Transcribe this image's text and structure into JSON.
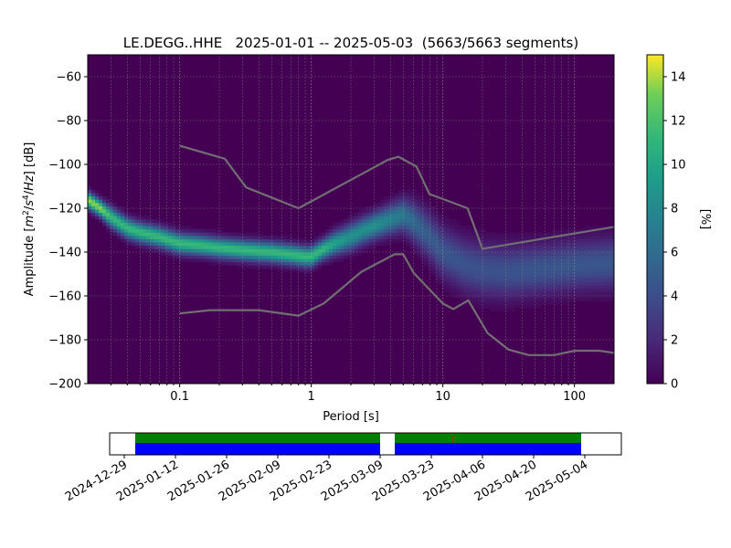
{
  "chart_data": [
    {
      "type": "heatmap",
      "title": "LE.DEGG..HHE   2025-01-01 -- 2025-05-03  (5663/5663 segments)",
      "xlabel": "Period [s]",
      "ylabel": "Amplitude [m²/s⁴/Hz] [dB]",
      "x_scale": "log",
      "xlim": [
        0.02,
        200
      ],
      "ylim": [
        -200,
        -50
      ],
      "x_ticks": [
        0.1,
        1,
        10,
        100
      ],
      "x_tick_labels": [
        "0.1",
        "1",
        "10",
        "100"
      ],
      "y_ticks": [
        -200,
        -180,
        -160,
        -140,
        -120,
        -100,
        -80,
        -60
      ],
      "y_tick_labels": [
        "−200",
        "−180",
        "−160",
        "−140",
        "−120",
        "−100",
        "−80",
        "−60"
      ],
      "grid": true,
      "colorbar": {
        "label": "[%]",
        "range": [
          0,
          15
        ],
        "ticks": [
          0,
          2,
          4,
          6,
          8,
          10,
          12,
          14
        ],
        "tick_labels": [
          "0",
          "2",
          "4",
          "6",
          "8",
          "10",
          "12",
          "14"
        ],
        "colormap": "viridis"
      },
      "mode_curve": {
        "x": [
          0.02,
          0.025,
          0.03,
          0.04,
          0.05,
          0.07,
          0.1,
          0.15,
          0.2,
          0.3,
          0.5,
          0.7,
          0.9,
          1.0,
          1.2,
          1.5,
          2.0,
          2.5,
          3.0,
          4.0,
          5.0,
          6.0,
          8.0,
          10.0,
          15.0,
          20.0,
          30.0,
          50.0,
          100.0,
          200.0
        ],
        "y": [
          -116,
          -120,
          -124,
          -129,
          -131,
          -133,
          -136,
          -137,
          -138,
          -139,
          -140,
          -141,
          -142,
          -142,
          -139,
          -136,
          -133,
          -130,
          -128,
          -125,
          -123,
          -126,
          -133,
          -140,
          -146,
          -148,
          -149,
          -148,
          -146,
          -145
        ],
        "spread_db": [
          2.5,
          2.5,
          3,
          3,
          3,
          3,
          3,
          3,
          3,
          3,
          3,
          3,
          3,
          3,
          3,
          3.5,
          4,
          4,
          4,
          4.5,
          5,
          6,
          7,
          7.5,
          8,
          8,
          8,
          7.5,
          7.5,
          7.5
        ]
      },
      "noise_models": [
        {
          "name": "high",
          "color": "#707070",
          "x": [
            0.1,
            0.22,
            0.32,
            0.8,
            3.8,
            4.6,
            6.3,
            7.9,
            15.4,
            20.0,
            200.0
          ],
          "y": [
            -91.5,
            -97.4,
            -110.5,
            -120.0,
            -98.0,
            -96.5,
            -101.0,
            -113.5,
            -120.0,
            -138.5,
            -128.5
          ]
        },
        {
          "name": "low",
          "color": "#707070",
          "x": [
            0.1,
            0.17,
            0.4,
            0.8,
            1.24,
            2.4,
            4.3,
            5.0,
            6.0,
            10.0,
            12.0,
            15.6,
            21.9,
            31.6,
            45.0,
            70.0,
            101.0,
            154.0,
            200.0
          ],
          "y": [
            -168,
            -166.5,
            -166.5,
            -169,
            -163.5,
            -149,
            -141,
            -141,
            -149.5,
            -163.5,
            -166,
            -162,
            -177,
            -184.5,
            -187,
            -187,
            -185,
            -185,
            -186
          ]
        }
      ]
    },
    {
      "type": "timeline",
      "date_range": [
        "2024-12-25",
        "2025-05-14"
      ],
      "x_tick_labels": [
        "2024-12-29",
        "2025-01-12",
        "2025-01-26",
        "2025-02-09",
        "2025-02-23",
        "2025-03-09",
        "2025-03-23",
        "2025-04-06",
        "2025-04-20",
        "2025-05-04"
      ],
      "x_tick_dates": [
        "2024-12-29",
        "2025-01-12",
        "2025-01-26",
        "2025-02-09",
        "2025-02-23",
        "2025-03-09",
        "2025-03-23",
        "2025-04-06",
        "2025-04-20",
        "2025-05-04"
      ],
      "data_available": [
        {
          "start": "2025-01-01",
          "end": "2025-03-09",
          "color": "#0000ff"
        },
        {
          "start": "2025-03-13",
          "end": "2025-05-03",
          "color": "#0000ff"
        }
      ],
      "psd_used": [
        {
          "start": "2025-01-01",
          "end": "2025-03-09",
          "color": "#008000"
        },
        {
          "start": "2025-03-13",
          "end": "2025-05-03",
          "color": "#008000"
        }
      ],
      "gap_markers": [
        {
          "date": "2025-03-29",
          "color": "#ff0000"
        }
      ]
    }
  ]
}
